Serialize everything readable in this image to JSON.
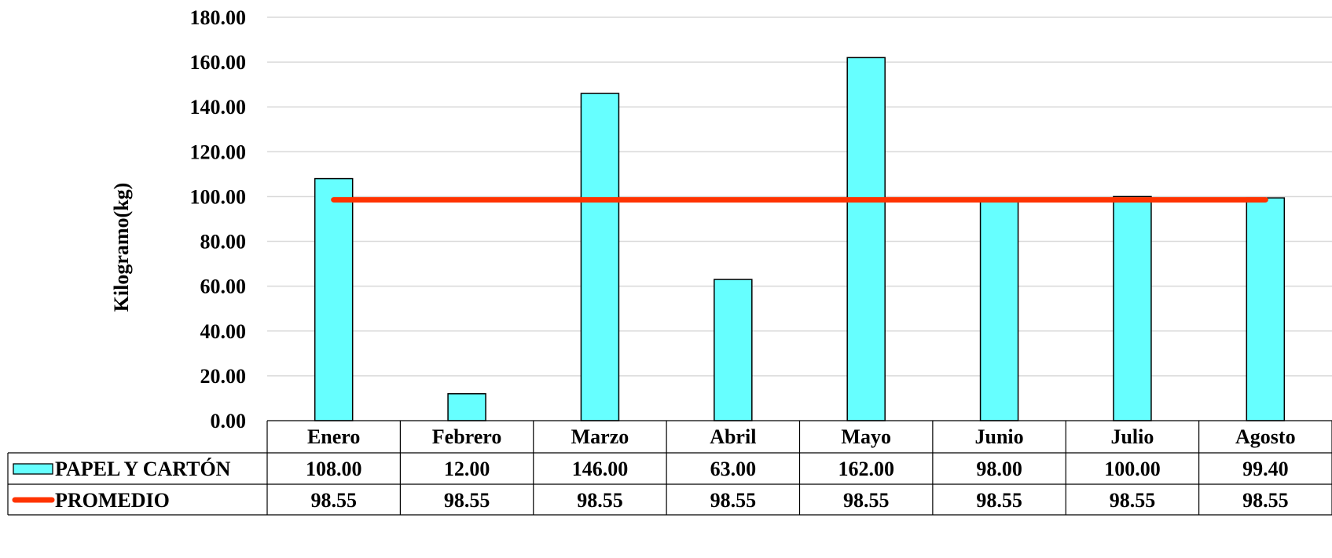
{
  "chart_data": {
    "type": "bar",
    "categories": [
      "Enero",
      "Febrero",
      "Marzo",
      "Abril",
      "Mayo",
      "Junio",
      "Julio",
      "Agosto"
    ],
    "series": [
      {
        "name": "PAPEL Y CARTÓN",
        "type": "bar",
        "color": "#66FFFF",
        "values": [
          108.0,
          12.0,
          146.0,
          63.0,
          162.0,
          98.0,
          100.0,
          99.4
        ],
        "labels": [
          "108.00",
          "12.00",
          "146.00",
          "63.00",
          "162.00",
          "98.00",
          "100.00",
          "99.40"
        ]
      },
      {
        "name": "PROMEDIO",
        "type": "line",
        "color": "#FF3300",
        "values": [
          98.55,
          98.55,
          98.55,
          98.55,
          98.55,
          98.55,
          98.55,
          98.55
        ],
        "labels": [
          "98.55",
          "98.55",
          "98.55",
          "98.55",
          "98.55",
          "98.55",
          "98.55",
          "98.55"
        ]
      }
    ],
    "ylabel": "Kilogramo(kg)",
    "ylim": [
      0,
      180
    ],
    "yticks": [
      "0.00",
      "20.00",
      "40.00",
      "60.00",
      "80.00",
      "100.00",
      "120.00",
      "140.00",
      "160.00",
      "180.00"
    ],
    "grid": true,
    "legend_placement": "data-table"
  }
}
